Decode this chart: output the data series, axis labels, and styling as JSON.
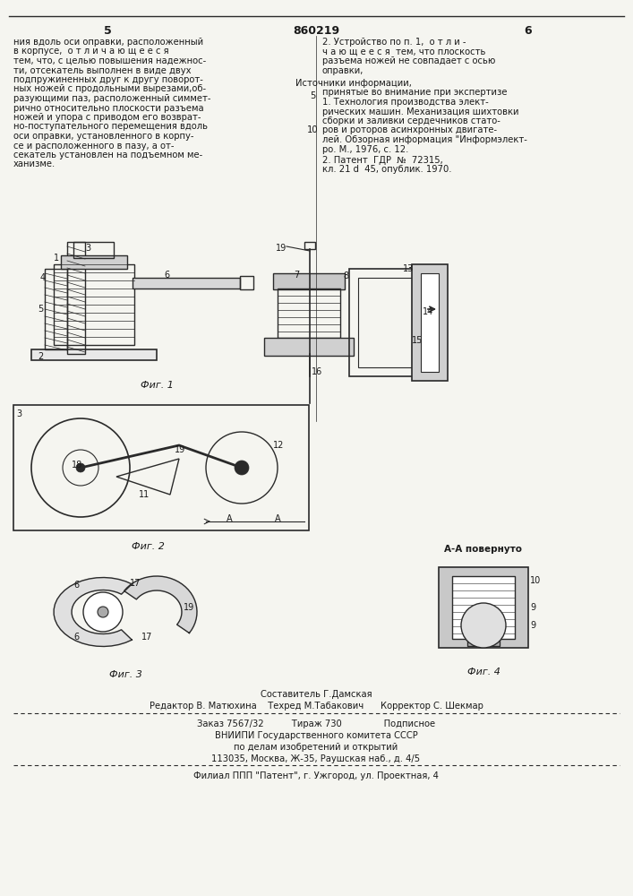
{
  "page_number_left": "5",
  "patent_number": "860219",
  "page_number_right": "6",
  "left_column_text": [
    "ния вдоль оси оправки, расположенный",
    "в корпусе,  о т л и ч а ю щ е е с я",
    "тем, что, с целью повышения надежнос-",
    "ти, отсекатель выполнен в виде двух",
    "подпружиненных друг к другу поворот-",
    "ных ножей с продольными вырезами,об-",
    "разующими паз, расположенный симмет-",
    "рично относительно плоскости разъема",
    "ножей и упора с приводом его возврат-",
    "но-поступательного перемещения вдоль",
    "оси оправки, установленного в корпу-",
    "се и расположенного в пазу, а от-",
    "секатель установлен на подъемном ме-",
    "ханизме."
  ],
  "right_column_text_top": [
    "2. Устройство по п. 1,  о т л и -",
    "ч а ю щ е е с я  тем, что плоскость",
    "разъема ножей не совпадает с осью",
    "оправки,"
  ],
  "sources_header": "Источники информации,",
  "sources_subheader": "принятые во внимание при экспертизе",
  "source1_lines": [
    "1. Технология производства элект-",
    "рических машин. Механизация шихтовки",
    "сборки и заливки сердечников стато-",
    "ров и роторов асинхронных двигате-",
    "лей. Обзорная информация \"Информэлект-",
    "ро. М., 1976, с. 12."
  ],
  "source2_lines": [
    "2. Патент  ГДР  №  72315,",
    "кл. 21 d  45, опублик. 1970."
  ],
  "fig1_label": "Фиг. 1",
  "fig2_label": "Фиг. 2",
  "fig3_label": "Фиг. 3",
  "fig4_label": "Фиг. 4",
  "fig4_sublabel": "А-А повернуто",
  "line_number_5": "5",
  "line_number_10": "10",
  "editor_line": "Редактор В. Матюхина    Техред М.Табакович      Корректор С. Шекмар",
  "compiler_line": "Составитель Г.Дамская",
  "order_line": "Заказ 7567/32          Тираж 730               Подписное",
  "org_line1": "ВНИИПИ Государственного комитета СССР",
  "org_line2": "по делам изобретений и открытий",
  "org_line3": "113035, Москва, Ж-35, Раушская наб., д. 4/5",
  "branch_line": "Филиал ППП \"Патент\", г. Ужгород, ул. Проектная, 4",
  "bg_color": "#f5f5f0",
  "text_color": "#1a1a1a",
  "line_color": "#2a2a2a"
}
